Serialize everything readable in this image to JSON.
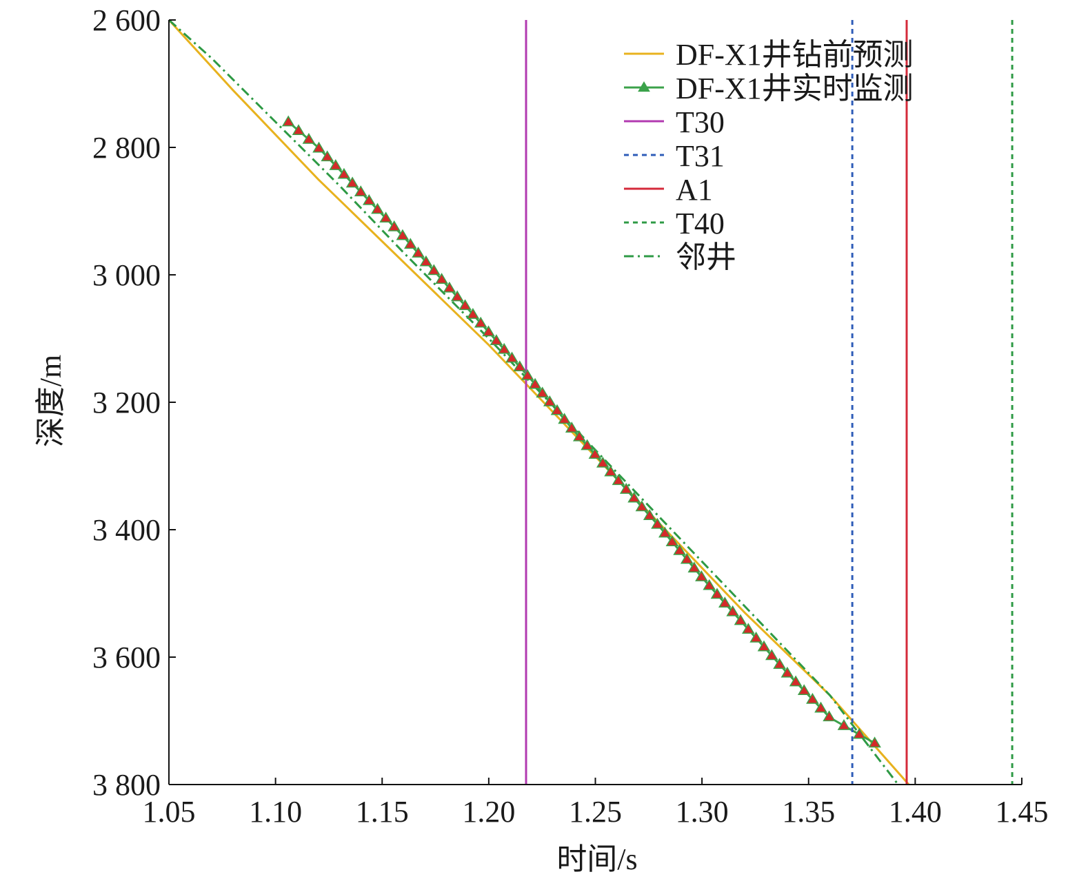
{
  "chart_data": {
    "type": "line",
    "xlabel": "时间/s",
    "ylabel": "深度/m",
    "xlim": [
      1.05,
      1.45
    ],
    "ylim": [
      2600,
      3800
    ],
    "y_inverted": true,
    "x_ticks": [
      "1.05",
      "1.10",
      "1.15",
      "1.20",
      "1.25",
      "1.30",
      "1.35",
      "1.40",
      "1.45"
    ],
    "y_ticks": [
      "2 600",
      "2 800",
      "3 000",
      "3 200",
      "3 400",
      "3 600",
      "3 800"
    ],
    "x_tick_values": [
      1.05,
      1.1,
      1.15,
      1.2,
      1.25,
      1.3,
      1.35,
      1.4,
      1.45
    ],
    "y_tick_values": [
      2600,
      2800,
      3000,
      3200,
      3400,
      3600,
      3800
    ],
    "grid": false,
    "legend_position": "top-right",
    "series": [
      {
        "name": "DF-X1井钻前预测",
        "style": "solid",
        "color": "#E8B21E",
        "x": [
          1.05,
          1.08,
          1.12,
          1.16,
          1.2,
          1.24,
          1.28,
          1.32,
          1.36,
          1.397
        ],
        "y": [
          2600,
          2710,
          2850,
          2980,
          3110,
          3250,
          3390,
          3530,
          3660,
          3800
        ]
      },
      {
        "name": "DF-X1井实时监测",
        "style": "solid-triangle-markers",
        "color": "#3BA24A",
        "marker_color": "#D42A2A",
        "x": [
          1.106,
          1.12,
          1.14,
          1.16,
          1.18,
          1.2,
          1.22,
          1.24,
          1.26,
          1.28,
          1.3,
          1.32,
          1.34,
          1.36,
          1.381
        ],
        "y": [
          2760,
          2800,
          2870,
          2940,
          3015,
          3090,
          3165,
          3245,
          3320,
          3395,
          3475,
          3550,
          3625,
          3695,
          3735
        ]
      },
      {
        "name": "T30",
        "style": "vertical-solid",
        "color": "#B23AB0",
        "x_value": 1.2175
      },
      {
        "name": "T31",
        "style": "vertical-dashed",
        "color": "#2E5CB8",
        "x_value": 1.3705
      },
      {
        "name": "A1",
        "style": "vertical-solid",
        "color": "#D42A3A",
        "x_value": 1.396
      },
      {
        "name": "T40",
        "style": "vertical-dashed",
        "color": "#2E9A45",
        "x_value": 1.4455
      },
      {
        "name": "邻井",
        "style": "dashdot",
        "color": "#2E9A45",
        "x": [
          1.05,
          1.07,
          1.1,
          1.13,
          1.16,
          1.2,
          1.24,
          1.28,
          1.32,
          1.36,
          1.392
        ],
        "y": [
          2600,
          2660,
          2760,
          2860,
          2965,
          3100,
          3240,
          3380,
          3520,
          3660,
          3800
        ]
      }
    ]
  }
}
